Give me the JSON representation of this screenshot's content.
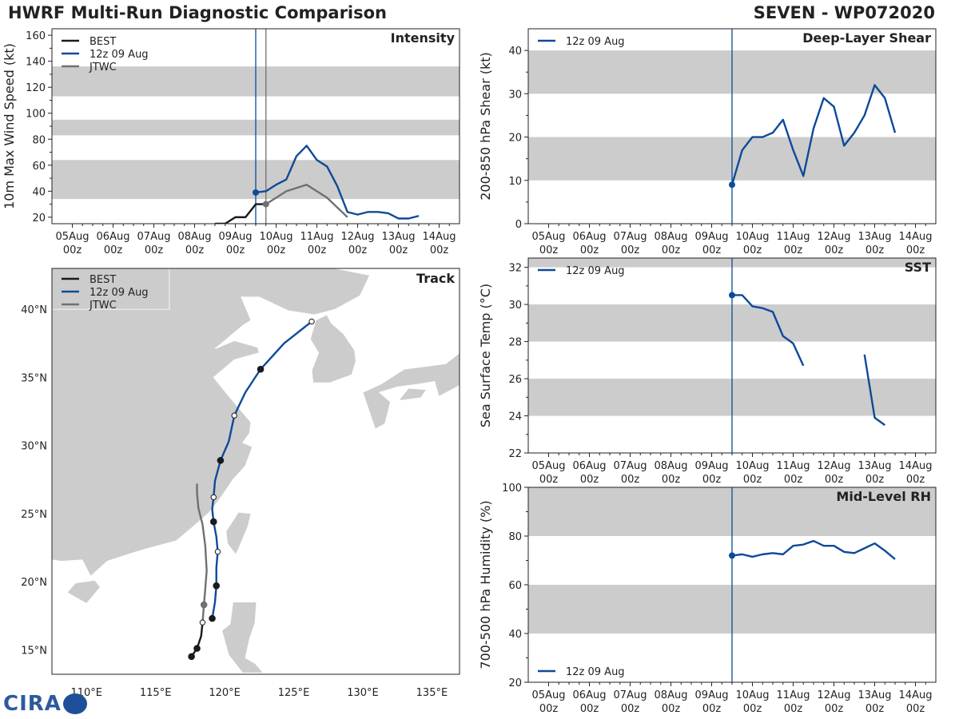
{
  "header": {
    "title": "HWRF Multi-Run Diagnostic Comparison",
    "storm": "SEVEN - WP072020"
  },
  "colors": {
    "best": "#1a1a1a",
    "run": "#0d4a99",
    "jtwc": "#707070",
    "band": "#cccccc",
    "land": "#cccccc"
  },
  "time_ticks": [
    [
      "05Aug",
      "00z"
    ],
    [
      "06Aug",
      "00z"
    ],
    [
      "07Aug",
      "00z"
    ],
    [
      "08Aug",
      "00z"
    ],
    [
      "09Aug",
      "00z"
    ],
    [
      "10Aug",
      "00z"
    ],
    [
      "11Aug",
      "00z"
    ],
    [
      "12Aug",
      "00z"
    ],
    [
      "13Aug",
      "00z"
    ],
    [
      "14Aug",
      "00z"
    ]
  ],
  "chart_data": [
    {
      "id": "intensity",
      "type": "line",
      "title": "Intensity",
      "ylabel": "10m Max Wind Speed (kt)",
      "ylim": [
        15,
        165
      ],
      "xlim_hours": [
        -12,
        228
      ],
      "yticks": [
        20,
        40,
        60,
        80,
        100,
        120,
        140,
        160
      ],
      "bands": [
        [
          34,
          64
        ],
        [
          83,
          95
        ],
        [
          113,
          136
        ]
      ],
      "vlines": [
        {
          "hour": 108,
          "color": "#0d4a99"
        },
        {
          "hour": 114,
          "color": "#707070"
        }
      ],
      "legend": [
        "BEST",
        "12z 09 Aug",
        "JTWC"
      ],
      "series": [
        {
          "name": "BEST",
          "color_key": "best",
          "points": [
            [
              84,
              15
            ],
            [
              90,
              15
            ],
            [
              96,
              20
            ],
            [
              102,
              20
            ],
            [
              108,
              30
            ],
            [
              114,
              30
            ]
          ]
        },
        {
          "name": "12z 09 Aug",
          "color_key": "run",
          "marker_first": true,
          "points": [
            [
              108,
              39
            ],
            [
              114,
              40
            ],
            [
              120,
              45
            ],
            [
              126,
              49
            ],
            [
              132,
              67
            ],
            [
              138,
              75
            ],
            [
              144,
              64
            ],
            [
              150,
              59
            ],
            [
              156,
              44
            ],
            [
              162,
              24
            ],
            [
              168,
              22
            ],
            [
              174,
              24
            ],
            [
              180,
              24
            ],
            [
              186,
              23
            ],
            [
              192,
              19
            ],
            [
              198,
              19
            ],
            [
              204,
              21
            ]
          ]
        },
        {
          "name": "JTWC",
          "color_key": "jtwc",
          "marker_first": true,
          "points": [
            [
              114,
              30
            ],
            [
              120,
              35
            ],
            [
              126,
              40
            ],
            [
              138,
              45
            ],
            [
              150,
              35
            ],
            [
              162,
              20
            ]
          ]
        }
      ]
    },
    {
      "id": "shear",
      "type": "line",
      "title": "Deep-Layer Shear",
      "ylabel": "200-850 hPa Shear (kt)",
      "ylim": [
        0,
        45
      ],
      "xlim_hours": [
        -12,
        228
      ],
      "yticks": [
        0,
        10,
        20,
        30,
        40
      ],
      "bands": [
        [
          10,
          20
        ],
        [
          30,
          40
        ]
      ],
      "vlines": [
        {
          "hour": 108,
          "color": "#0d4a99"
        }
      ],
      "legend": [
        "12z 09 Aug"
      ],
      "series": [
        {
          "name": "12z 09 Aug",
          "color_key": "run",
          "marker_first": true,
          "points": [
            [
              108,
              9
            ],
            [
              114,
              17
            ],
            [
              120,
              20
            ],
            [
              126,
              20
            ],
            [
              132,
              21
            ],
            [
              138,
              24
            ],
            [
              144,
              17
            ],
            [
              150,
              11
            ],
            [
              156,
              22
            ],
            [
              162,
              29
            ],
            [
              168,
              27
            ],
            [
              174,
              18
            ],
            [
              180,
              21
            ],
            [
              186,
              25
            ],
            [
              192,
              32
            ],
            [
              198,
              29
            ],
            [
              204,
              21
            ]
          ]
        }
      ]
    },
    {
      "id": "sst",
      "type": "line",
      "title": "SST",
      "ylabel": "Sea Surface Temp (°C)",
      "ylim": [
        22,
        32.5
      ],
      "xlim_hours": [
        -12,
        228
      ],
      "yticks": [
        22,
        24,
        26,
        28,
        30,
        32
      ],
      "bands": [
        [
          24,
          26
        ],
        [
          28,
          30
        ],
        [
          32,
          34
        ]
      ],
      "vlines": [
        {
          "hour": 108,
          "color": "#0d4a99"
        }
      ],
      "legend": [
        "12z 09 Aug"
      ],
      "series": [
        {
          "name": "12z 09 Aug",
          "color_key": "run",
          "marker_first": true,
          "points": [
            [
              108,
              30.5
            ],
            [
              114,
              30.5
            ],
            [
              120,
              29.9
            ],
            [
              126,
              29.8
            ],
            [
              132,
              29.6
            ],
            [
              138,
              28.3
            ],
            [
              144,
              27.9
            ],
            [
              150,
              26.7
            ]
          ]
        },
        {
          "name": "12z 09 Aug",
          "color_key": "run",
          "points": [
            [
              186,
              27.3
            ],
            [
              192,
              23.9
            ],
            [
              198,
              23.5
            ]
          ]
        }
      ]
    },
    {
      "id": "rh",
      "type": "line",
      "title": "Mid-Level RH",
      "ylabel": "700-500 hPa Humidity (%)",
      "ylim": [
        20,
        100
      ],
      "xlim_hours": [
        -12,
        228
      ],
      "yticks": [
        20,
        40,
        60,
        80,
        100
      ],
      "bands": [
        [
          40,
          60
        ],
        [
          80,
          100
        ]
      ],
      "vlines": [
        {
          "hour": 108,
          "color": "#0d4a99"
        }
      ],
      "legend": [
        "12z 09 Aug"
      ],
      "legend_loc": "bottom-left",
      "series": [
        {
          "name": "12z 09 Aug",
          "color_key": "run",
          "marker_first": true,
          "points": [
            [
              108,
              72
            ],
            [
              114,
              72.5
            ],
            [
              120,
              71.5
            ],
            [
              126,
              72.5
            ],
            [
              132,
              73
            ],
            [
              138,
              72.5
            ],
            [
              144,
              76
            ],
            [
              150,
              76.5
            ],
            [
              156,
              78
            ],
            [
              162,
              76
            ],
            [
              168,
              76
            ],
            [
              174,
              73.5
            ],
            [
              180,
              73
            ],
            [
              186,
              75
            ],
            [
              192,
              77
            ],
            [
              198,
              74
            ],
            [
              204,
              70.5
            ]
          ]
        }
      ]
    },
    {
      "id": "track",
      "type": "scatter",
      "title": "Track",
      "xlim": [
        107.5,
        137
      ],
      "ylim": [
        13.2,
        43
      ],
      "xticks": [
        [
          110,
          "110°E"
        ],
        [
          115,
          "115°E"
        ],
        [
          120,
          "120°E"
        ],
        [
          125,
          "125°E"
        ],
        [
          130,
          "130°E"
        ],
        [
          135,
          "135°E"
        ]
      ],
      "yticks": [
        [
          15,
          "15°N"
        ],
        [
          20,
          "20°N"
        ],
        [
          25,
          "25°N"
        ],
        [
          30,
          "30°N"
        ],
        [
          35,
          "35°N"
        ],
        [
          40,
          "40°N"
        ]
      ],
      "legend": [
        "BEST",
        "12z 09 Aug",
        "JTWC"
      ],
      "series": [
        {
          "name": "BEST",
          "color_key": "best",
          "points": [
            [
              117.6,
              14.5
            ],
            [
              118.0,
              15.1
            ],
            [
              118.3,
              16.0
            ],
            [
              118.4,
              17.0
            ]
          ],
          "markers": [
            [
              117.6,
              14.5,
              "filled"
            ],
            [
              118.0,
              15.1,
              "filled"
            ]
          ]
        },
        {
          "name": "12z 09 Aug",
          "color_key": "run",
          "points": [
            [
              119.1,
              17.3
            ],
            [
              119.3,
              18.5
            ],
            [
              119.4,
              19.7
            ],
            [
              119.4,
              21.0
            ],
            [
              119.5,
              22.2
            ],
            [
              119.4,
              23.3
            ],
            [
              119.2,
              24.4
            ],
            [
              119.1,
              25.3
            ],
            [
              119.2,
              26.2
            ],
            [
              119.3,
              27.4
            ],
            [
              119.7,
              28.9
            ],
            [
              120.3,
              30.3
            ],
            [
              120.7,
              32.2
            ],
            [
              121.5,
              33.9
            ],
            [
              122.6,
              35.6
            ],
            [
              124.3,
              37.5
            ],
            [
              126.3,
              39.1
            ]
          ],
          "markers": [
            [
              119.1,
              17.3,
              "filled"
            ],
            [
              119.4,
              19.7,
              "filled"
            ],
            [
              119.5,
              22.2,
              "open"
            ],
            [
              119.2,
              24.4,
              "filled"
            ],
            [
              119.2,
              26.2,
              "open"
            ],
            [
              119.7,
              28.9,
              "filled"
            ],
            [
              120.7,
              32.2,
              "open"
            ],
            [
              122.6,
              35.6,
              "filled"
            ],
            [
              126.3,
              39.1,
              "open"
            ]
          ]
        },
        {
          "name": "JTWC",
          "color_key": "jtwc",
          "points": [
            [
              118.4,
              17.0
            ],
            [
              118.5,
              18.3
            ],
            [
              118.6,
              19.5
            ],
            [
              118.7,
              20.8
            ],
            [
              118.6,
              22.6
            ],
            [
              118.4,
              24.2
            ],
            [
              118.1,
              25.4
            ],
            [
              118.0,
              26.5
            ],
            [
              118.0,
              27.2
            ]
          ],
          "markers": [
            [
              118.4,
              17.0,
              "open"
            ],
            [
              118.5,
              18.3,
              "gray"
            ]
          ]
        }
      ]
    }
  ]
}
